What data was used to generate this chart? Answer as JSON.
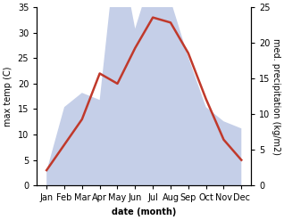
{
  "months": [
    "Jan",
    "Feb",
    "Mar",
    "Apr",
    "May",
    "Jun",
    "Jul",
    "Aug",
    "Sep",
    "Oct",
    "Nov",
    "Dec"
  ],
  "temp": [
    3,
    8,
    13,
    22,
    20,
    27,
    33,
    32,
    26,
    17,
    9,
    5
  ],
  "precip": [
    2,
    11,
    13,
    12,
    35,
    22,
    30,
    26,
    18,
    11,
    9,
    8
  ],
  "temp_color": "#c0392b",
  "precip_fill_color": "#c5cfe8",
  "temp_ylim": [
    0,
    35
  ],
  "precip_ylim": [
    0,
    25
  ],
  "temp_yticks": [
    0,
    5,
    10,
    15,
    20,
    25,
    30,
    35
  ],
  "precip_yticks": [
    0,
    5,
    10,
    15,
    20,
    25
  ],
  "ylabel_left": "max temp (C)",
  "ylabel_right": "med. precipitation (kg/m2)",
  "xlabel": "date (month)",
  "background_color": "#ffffff",
  "fig_width": 3.18,
  "fig_height": 2.47,
  "dpi": 100,
  "temp_linewidth": 1.8,
  "label_fontsize": 7,
  "axis_label_fontsize": 7
}
